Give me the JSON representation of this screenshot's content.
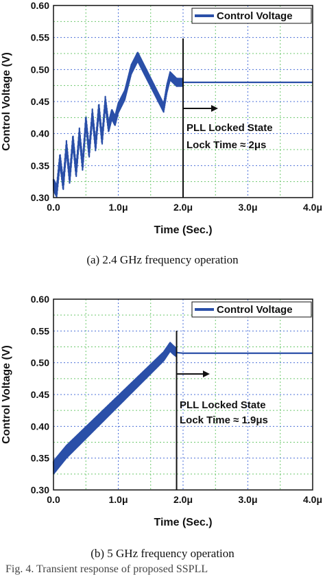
{
  "chart_data": [
    {
      "type": "line",
      "xlabel": "Time (Sec.)",
      "ylabel": "Control Voltage (V)",
      "xlim": [
        0,
        4.0
      ],
      "ylim": [
        0.3,
        0.6
      ],
      "x_ticks": [
        0,
        1,
        2,
        3,
        4
      ],
      "x_tick_labels": [
        "0.0",
        "1.0μ",
        "2.0μ",
        "3.0μ",
        "4.0μ"
      ],
      "y_ticks": [
        0.3,
        0.35,
        0.4,
        0.45,
        0.5,
        0.55,
        0.6
      ],
      "y_tick_labels": [
        "0.30",
        "0.35",
        "0.40",
        "0.45",
        "0.50",
        "0.55",
        "0.60"
      ],
      "grid": true,
      "legend": {
        "placement": "top-right",
        "entries": [
          "Control Voltage"
        ]
      },
      "series": [
        {
          "name": "Control Voltage",
          "color": "#2a4fa8",
          "x": [
            0,
            0.05,
            0.1,
            0.15,
            0.2,
            0.25,
            0.3,
            0.35,
            0.4,
            0.45,
            0.5,
            0.55,
            0.6,
            0.65,
            0.7,
            0.75,
            0.8,
            0.85,
            0.9,
            0.95,
            1.0,
            1.05,
            1.1,
            1.15,
            1.2,
            1.25,
            1.3,
            1.35,
            1.4,
            1.5,
            1.6,
            1.7,
            1.75,
            1.8,
            1.85,
            1.9,
            2.0,
            2.5,
            3.0,
            3.5,
            4.0
          ],
          "y": [
            0.32,
            0.31,
            0.36,
            0.32,
            0.38,
            0.33,
            0.39,
            0.34,
            0.4,
            0.35,
            0.42,
            0.37,
            0.43,
            0.38,
            0.44,
            0.39,
            0.45,
            0.41,
            0.43,
            0.42,
            0.44,
            0.45,
            0.46,
            0.48,
            0.5,
            0.51,
            0.52,
            0.51,
            0.5,
            0.48,
            0.46,
            0.44,
            0.47,
            0.49,
            0.485,
            0.48,
            0.48,
            0.48,
            0.48,
            0.48,
            0.48
          ],
          "osc_amplitude": 0.018
        }
      ],
      "locked_marker_x": 2.0,
      "annotations": [
        "PLL Locked State",
        "Lock Time ≈ 2μs"
      ],
      "caption": "(a) 2.4 GHz frequency operation"
    },
    {
      "type": "line",
      "xlabel": "Time (Sec.)",
      "ylabel": "Control Voltage (V)",
      "xlim": [
        0,
        4.0
      ],
      "ylim": [
        0.3,
        0.6
      ],
      "x_ticks": [
        0,
        1,
        2,
        3,
        4
      ],
      "x_tick_labels": [
        "0.0",
        "1.0μ",
        "2.0μ",
        "3.0μ",
        "4.0μ"
      ],
      "y_ticks": [
        0.3,
        0.35,
        0.4,
        0.45,
        0.5,
        0.55,
        0.6
      ],
      "y_tick_labels": [
        "0.30",
        "0.35",
        "0.40",
        "0.45",
        "0.50",
        "0.55",
        "0.60"
      ],
      "grid": true,
      "legend": {
        "placement": "top-right",
        "entries": [
          "Control Voltage"
        ]
      },
      "series": [
        {
          "name": "Control Voltage",
          "color": "#2a4fa8",
          "x": [
            0,
            0.2,
            0.4,
            0.6,
            0.8,
            1.0,
            1.2,
            1.4,
            1.6,
            1.7,
            1.8,
            1.85,
            1.9,
            2.0,
            2.5,
            3.0,
            3.5,
            4.0
          ],
          "y": [
            0.335,
            0.36,
            0.38,
            0.4,
            0.42,
            0.44,
            0.46,
            0.48,
            0.5,
            0.51,
            0.525,
            0.52,
            0.516,
            0.515,
            0.515,
            0.515,
            0.515,
            0.515
          ],
          "osc_amplitude": 0.02
        }
      ],
      "locked_marker_x": 1.9,
      "annotations": [
        "PLL Locked State",
        "Lock Time ≈ 1.9μs"
      ],
      "caption": "(b) 5 GHz frequency operation"
    }
  ],
  "footer_text": "Fig. 4. Transient response of proposed SSPLL"
}
